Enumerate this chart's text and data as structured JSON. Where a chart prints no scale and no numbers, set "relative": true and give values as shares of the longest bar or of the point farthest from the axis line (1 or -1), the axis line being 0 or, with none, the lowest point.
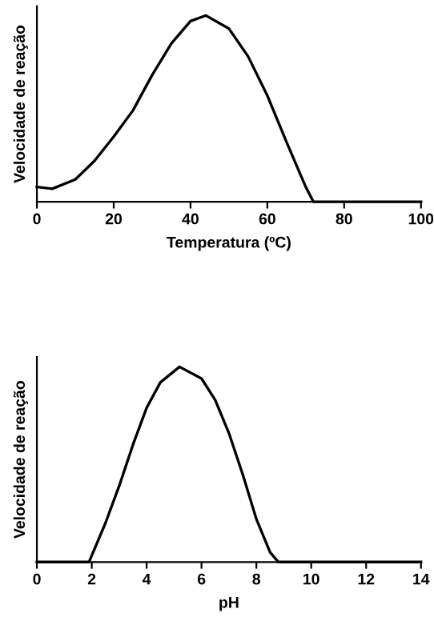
{
  "chart_data": [
    {
      "type": "line",
      "relative": true,
      "xlabel": "Temperatura (ºC)",
      "ylabel": "Velocidade de reação",
      "xlim": [
        0,
        100
      ],
      "xticks": [
        0,
        20,
        40,
        60,
        80,
        100
      ],
      "grid": false,
      "legend": false,
      "marker": "none",
      "line_style": "solid",
      "x": [
        0,
        4,
        10,
        15,
        20,
        25,
        30,
        35,
        40,
        44,
        50,
        55,
        60,
        65,
        70,
        72,
        100
      ],
      "series": [
        {
          "color": "#000000",
          "values": [
            0.08,
            0.07,
            0.12,
            0.22,
            0.35,
            0.49,
            0.68,
            0.85,
            0.97,
            1,
            0.93,
            0.78,
            0.57,
            0.32,
            0.08,
            0,
            0
          ]
        }
      ]
    },
    {
      "type": "line",
      "relative": true,
      "xlabel": "pH",
      "ylabel": "Velocidade de reação",
      "xlim": [
        0,
        14
      ],
      "xticks": [
        0,
        2,
        4,
        6,
        8,
        10,
        12,
        14
      ],
      "grid": false,
      "legend": false,
      "marker": "none",
      "line_style": "solid",
      "x": [
        0,
        1.9,
        2.5,
        3,
        3.5,
        4,
        4.5,
        5.2,
        6,
        6.5,
        7,
        7.5,
        8,
        8.5,
        8.8,
        14
      ],
      "series": [
        {
          "color": "#000000",
          "values": [
            0,
            0,
            0.2,
            0.39,
            0.6,
            0.79,
            0.92,
            1,
            0.94,
            0.83,
            0.66,
            0.45,
            0.22,
            0.05,
            0,
            0
          ]
        }
      ]
    }
  ]
}
